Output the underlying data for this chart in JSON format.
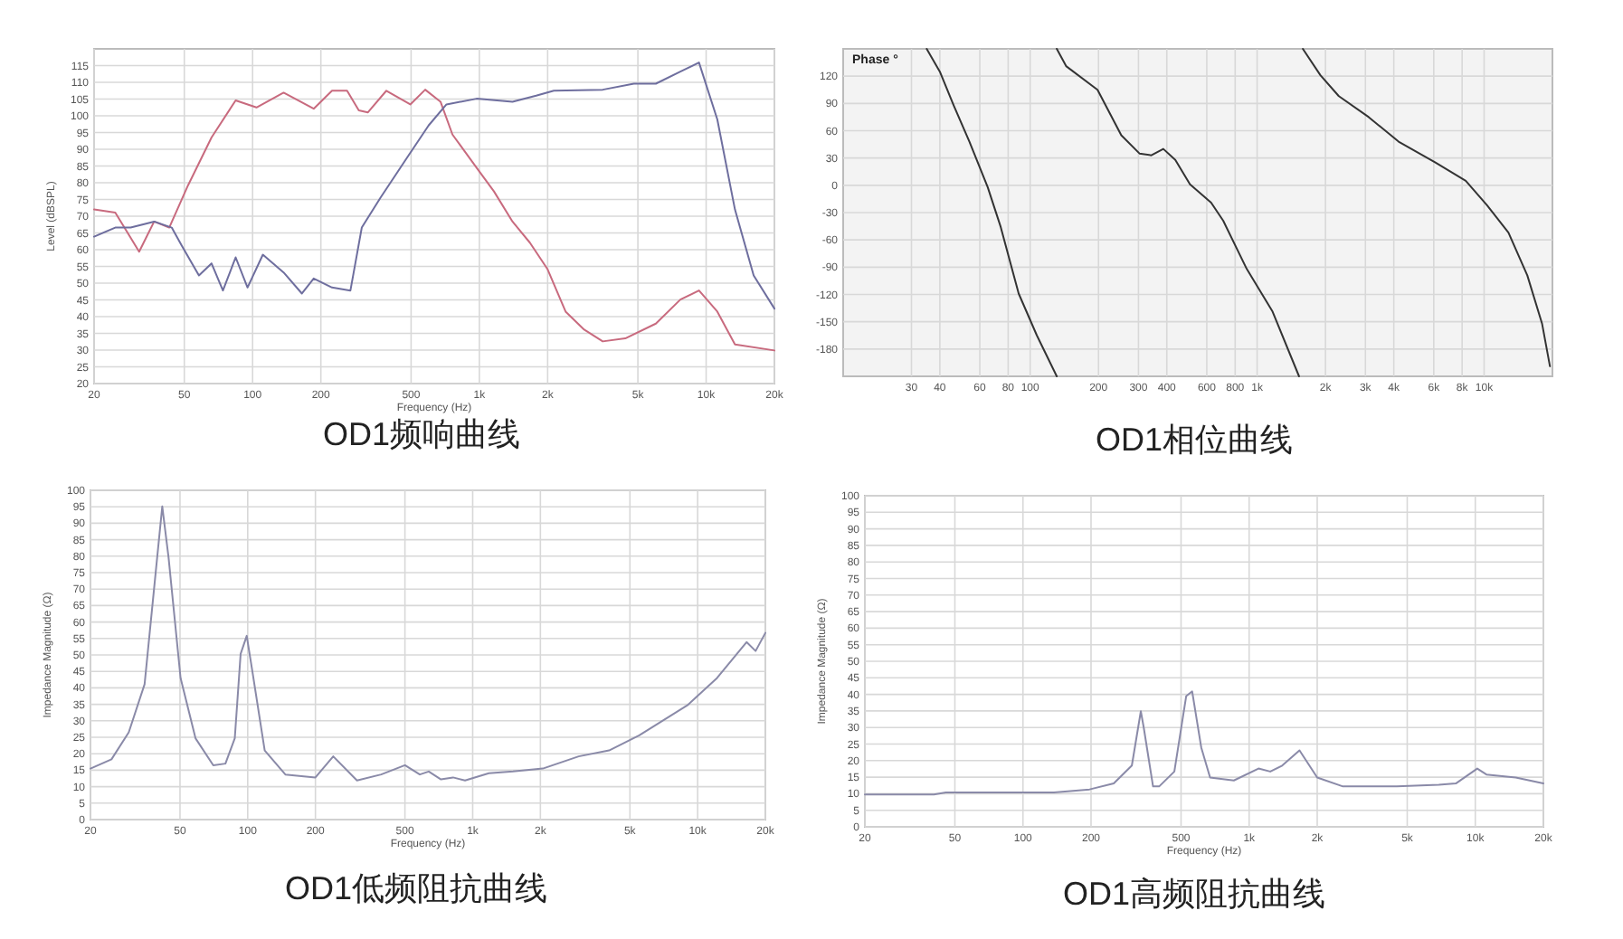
{
  "chart_data": [
    {
      "type": "line",
      "title": "OD1频响曲线",
      "xlabel": "Frequency (Hz)",
      "ylabel": "Level (dBSPL)",
      "log": "x",
      "grid": true,
      "xlim": [
        20,
        20000
      ],
      "ylim": [
        20,
        120
      ],
      "xticks": [
        20,
        50,
        100,
        200,
        500,
        {
          "value": 1000,
          "label": "1k"
        },
        {
          "value": 2000,
          "label": "2k"
        },
        {
          "value": 5000,
          "label": "5k"
        },
        {
          "value": 10000,
          "label": "10k"
        },
        {
          "value": 20000,
          "label": "20k"
        }
      ],
      "yticks": [
        20,
        25,
        30,
        35,
        40,
        45,
        50,
        55,
        60,
        65,
        70,
        75,
        80,
        85,
        90,
        95,
        100,
        105,
        110,
        115
      ],
      "series": [
        {
          "color": "#c86a7e",
          "x": [
            20,
            24.8,
            31.6,
            36.8,
            42.9,
            51.9,
            65.9,
            84.2,
            104,
            137,
            186,
            224,
            261,
            294,
            322,
            389,
            496,
            577,
            674,
            761,
            972,
            1160,
            1400,
            1670,
            2000,
            2400,
            2900,
            3500,
            4400,
            6000,
            7700,
            9300,
            11200,
            13400,
            20000
          ],
          "values": [
            72.0,
            71.1,
            59.4,
            68.4,
            66.6,
            79.2,
            93.5,
            104.6,
            102.5,
            106.9,
            102.1,
            107.5,
            107.5,
            101.6,
            101.0,
            107.5,
            103.4,
            107.8,
            104.2,
            94.4,
            84.5,
            77.4,
            68.4,
            62.1,
            54.1,
            41.5,
            36.1,
            32.6,
            33.5,
            37.9,
            45.1,
            47.8,
            41.5,
            31.7,
            29.9
          ]
        },
        {
          "color": "#6e6e9e",
          "x": [
            20,
            24.8,
            29,
            36.8,
            44,
            48.7,
            58.0,
            65.9,
            74.0,
            84.2,
            95,
            111,
            137,
            165,
            186,
            224,
            270,
            303,
            367,
            467,
            597,
            716,
            972,
            1400,
            1780,
            2130,
            3500,
            4800,
            6000,
            7700,
            9300,
            11200,
            13400,
            16200,
            20000
          ],
          "values": [
            63.9,
            66.6,
            66.6,
            68.4,
            66.6,
            61.2,
            52.3,
            55.9,
            47.8,
            57.7,
            48.7,
            58.5,
            53.2,
            46.9,
            51.4,
            48.7,
            47.8,
            66.6,
            75.6,
            86.3,
            97.1,
            103.4,
            105.1,
            104.2,
            106.0,
            107.5,
            107.8,
            109.6,
            109.6,
            113.2,
            115.9,
            98.9,
            72.0,
            52.3,
            42.4
          ]
        }
      ]
    },
    {
      "type": "line",
      "title": "OD1相位曲线",
      "ylabel": "Phase °",
      "log": "x",
      "grid": true,
      "xlim": [
        15,
        20000
      ],
      "ylim": [
        -210,
        150
      ],
      "xticks": [
        30,
        40,
        60,
        80,
        100,
        200,
        300,
        400,
        600,
        800,
        {
          "value": 1000,
          "label": "1k"
        },
        {
          "value": 2000,
          "label": "2k"
        },
        {
          "value": 3000,
          "label": "3k"
        },
        {
          "value": 4000,
          "label": "4k"
        },
        {
          "value": 6000,
          "label": "6k"
        },
        {
          "value": 8000,
          "label": "8k"
        },
        {
          "value": 10000,
          "label": "10k"
        }
      ],
      "yticks": [
        -180,
        -150,
        -120,
        -90,
        -60,
        -30,
        0,
        30,
        60,
        90,
        120
      ],
      "series": [
        {
          "color": "#333333",
          "x": [
            35,
            40,
            46,
            54,
            65,
            74,
            89,
            107,
            131
          ],
          "values": [
            150,
            125,
            88,
            48,
            -2,
            -45,
            -119,
            -165,
            -210
          ]
        },
        {
          "color": "#333333",
          "x": [
            131,
            144,
            198,
            252,
            303,
            342,
            386,
            436,
            506,
            627,
            709,
            900,
            1170,
            1530
          ],
          "values": [
            150,
            131,
            105,
            55,
            35,
            33,
            40,
            28,
            1,
            -19,
            -39,
            -92,
            -139,
            -210
          ]
        },
        {
          "color": "#333333",
          "x": [
            1590,
            1900,
            2290,
            3100,
            4200,
            6100,
            8300,
            10300,
            12800,
            15500,
            18000,
            19500
          ],
          "values": [
            150,
            121,
            98,
            75,
            48,
            25,
            5,
            -22,
            -52,
            -99,
            -152,
            -199
          ]
        }
      ]
    },
    {
      "type": "line",
      "title": "OD1低频阻抗曲线",
      "xlabel": "Frequency (Hz)",
      "ylabel": "Impedance Magnitude (Ω)",
      "log": "x",
      "grid": true,
      "xlim": [
        20,
        20000
      ],
      "ylim": [
        0,
        100
      ],
      "xticks": [
        20,
        50,
        100,
        200,
        500,
        {
          "value": 1000,
          "label": "1k"
        },
        {
          "value": 2000,
          "label": "2k"
        },
        {
          "value": 5000,
          "label": "5k"
        },
        {
          "value": 10000,
          "label": "10k"
        },
        {
          "value": 20000,
          "label": "20k"
        }
      ],
      "yticks": [
        0,
        5,
        10,
        15,
        20,
        25,
        30,
        35,
        40,
        45,
        50,
        55,
        60,
        65,
        70,
        75,
        80,
        85,
        90,
        95,
        100
      ],
      "series": [
        {
          "color": "#8a8aa8",
          "x": [
            20,
            24.8,
            29.6,
            34.8,
            39.1,
            41.7,
            44.5,
            50.3,
            58.6,
            70.3,
            79.6,
            87.6,
            93,
            99,
            105,
            119,
            147,
            200,
            240,
            306,
            392,
            500,
            582,
            638,
            723,
            818,
            925,
            1180,
            1510,
            2050,
            2960,
            4040,
            5500,
            9000,
            12200,
            16500,
            18100,
            20000
          ],
          "values": [
            15.5,
            18.3,
            26.5,
            41.1,
            75.9,
            95.1,
            79.5,
            43,
            24.7,
            16.5,
            17,
            24.7,
            50.3,
            55.8,
            44.8,
            21,
            13.7,
            12.8,
            19.2,
            11.9,
            13.7,
            16.5,
            13.7,
            14.6,
            12.2,
            12.8,
            11.9,
            14.1,
            14.6,
            15.5,
            19.2,
            21,
            25.6,
            34.7,
            43,
            53.9,
            51.2,
            56.7
          ]
        }
      ]
    },
    {
      "type": "line",
      "title": "OD1高频阻抗曲线",
      "xlabel": "Frequency (Hz)",
      "ylabel": "Impedance Magnitude (Ω)",
      "log": "x",
      "grid": true,
      "xlim": [
        20,
        20000
      ],
      "ylim": [
        0,
        100
      ],
      "xticks": [
        20,
        50,
        100,
        200,
        500,
        {
          "value": 1000,
          "label": "1k"
        },
        {
          "value": 2000,
          "label": "2k"
        },
        {
          "value": 5000,
          "label": "5k"
        },
        {
          "value": 10000,
          "label": "10k"
        },
        {
          "value": 20000,
          "label": "20k"
        }
      ],
      "yticks": [
        0,
        5,
        10,
        15,
        20,
        25,
        30,
        35,
        40,
        45,
        50,
        55,
        60,
        65,
        70,
        75,
        80,
        85,
        90,
        95,
        100
      ],
      "series": [
        {
          "color": "#8a8aa8",
          "x": [
            20,
            40.4,
            45.6,
            137,
            197,
            252,
            303,
            332,
            342,
            376,
            400,
            467,
            527,
            560,
            614,
            672,
            856,
            1100,
            1240,
            1400,
            1670,
            2000,
            2600,
            4500,
            6900,
            8200,
            10200,
            11200,
            15100,
            20000
          ],
          "values": [
            9.8,
            9.8,
            10.4,
            10.4,
            11.3,
            13.1,
            18.5,
            34.9,
            30,
            12.2,
            12.2,
            16.7,
            39.5,
            40.9,
            24,
            14.9,
            14,
            17.6,
            16.7,
            18.5,
            23.1,
            14.9,
            12.2,
            12.2,
            12.7,
            13.1,
            17.6,
            15.8,
            14.9,
            13.1
          ]
        }
      ]
    }
  ]
}
